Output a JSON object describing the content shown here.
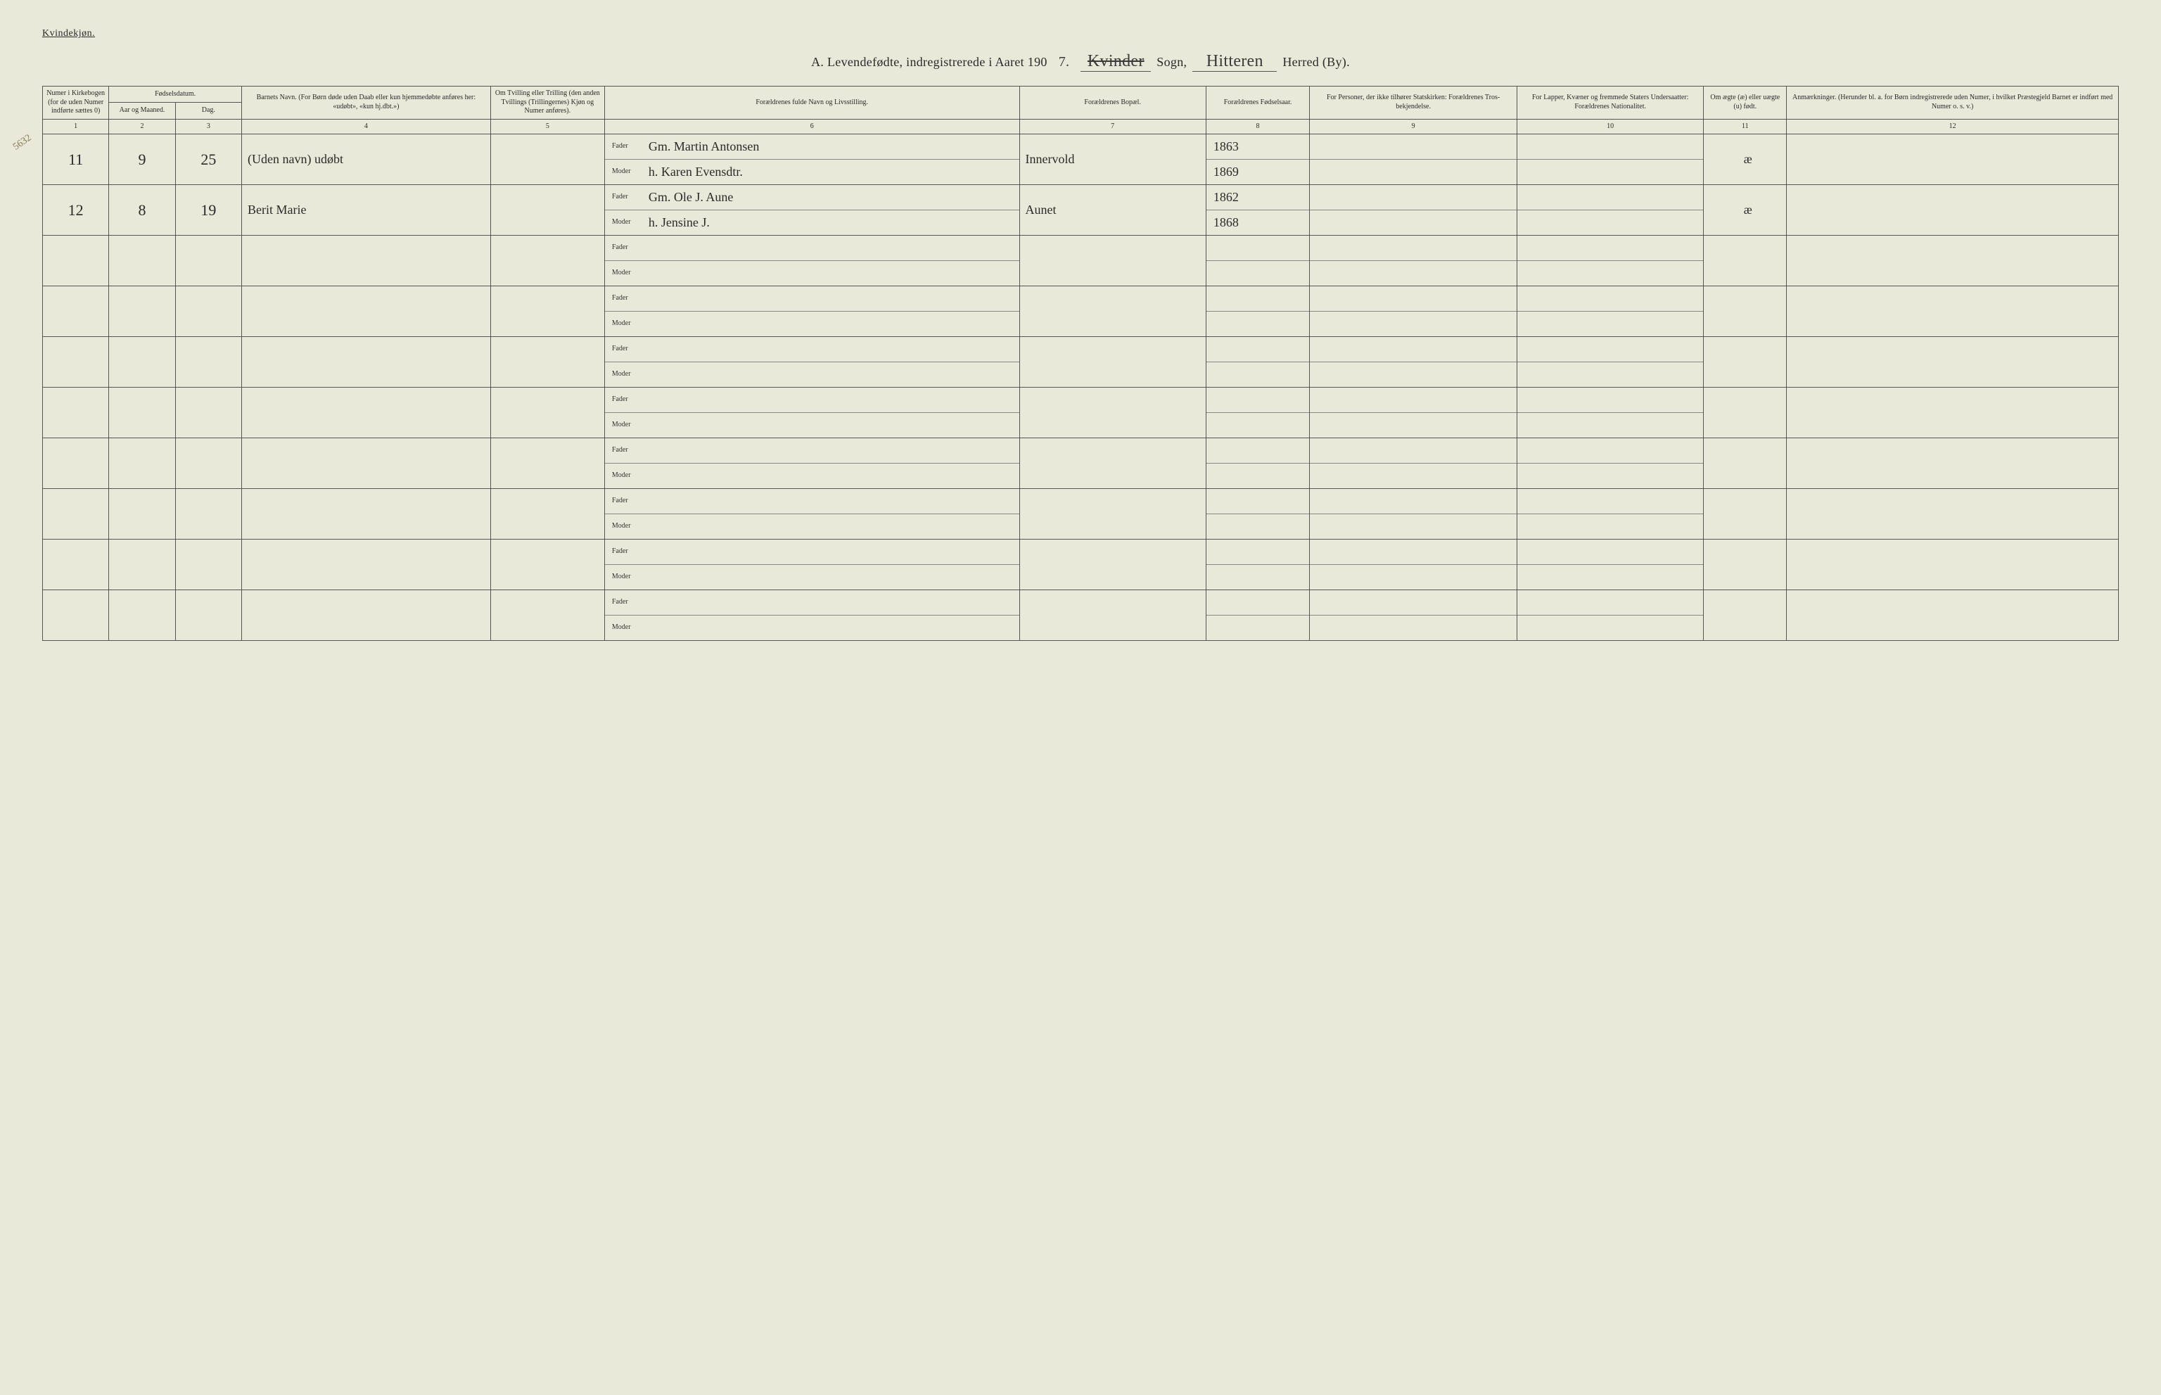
{
  "header": {
    "gender_label": "Kvindekjøn.",
    "title_prefix": "A.  Levendefødte, indregistrerede i Aaret 190",
    "year_suffix": "7.",
    "crossed_out_note": "Kvinder",
    "sogn_label": "Sogn,",
    "sogn_value": "Hitteren",
    "herred_label": "Herred (By)."
  },
  "margin_note": "5632",
  "columns": {
    "c1": "Numer i Kirke­bogen (for de uden Numer indførte sættes 0)",
    "c2_group": "Fødselsdatum.",
    "c2": "Aar og Maaned.",
    "c3": "Dag.",
    "c4": "Barnets Navn.\n(For Børn døde uden Daab eller kun hjemmedøbte anføres her: «udøbt», «kun hj.dbt.»)",
    "c5": "Om Tvilling eller Trilling (den anden Tvillings (Trillingernes) Kjøn og Numer anføres).",
    "c6": "Forældrenes fulde Navn og Livsstilling.",
    "c7": "Forældrenes Bopæl.",
    "c8": "For­ældrenes Fødsels­aar.",
    "c9": "For Personer, der ikke tilhører Statskirken: Forældrenes Tros­bekjendelse.",
    "c10": "For Lapper, Kvæner og fremmede Staters Undersaatter: Forældrenes Nationalitet.",
    "c11": "Om ægte (æ) eller uægte (u) født.",
    "c12": "Anmærkninger.\n(Herunder bl. a. for Børn indregistrerede uden Numer, i hvilket Præstegjeld Barnet er indført med Numer o. s. v.)"
  },
  "colnums": [
    "1",
    "2",
    "3",
    "4",
    "5",
    "6",
    "7",
    "8",
    "9",
    "10",
    "11",
    "12"
  ],
  "labels": {
    "fader": "Fader",
    "moder": "Moder"
  },
  "rows": [
    {
      "num": "11",
      "month": "9",
      "day": "25",
      "child": "(Uden navn) udøbt",
      "fader": "Gm. Martin Antonsen",
      "moder": "h. Karen Evensdtr.",
      "bopel": "Innervold",
      "fader_year": "1863",
      "moder_year": "1869",
      "legit": "æ"
    },
    {
      "num": "12",
      "month": "8",
      "day": "19",
      "child": "Berit Marie",
      "fader": "Gm. Ole J. Aune",
      "moder": "h. Jensine J.",
      "bopel": "Aunet",
      "fader_year": "1862",
      "moder_year": "1868",
      "legit": "æ"
    },
    {},
    {},
    {},
    {},
    {},
    {},
    {},
    {}
  ],
  "style": {
    "background": "#eae8d8",
    "ink": "#2a2a2a",
    "rule": "#555"
  }
}
